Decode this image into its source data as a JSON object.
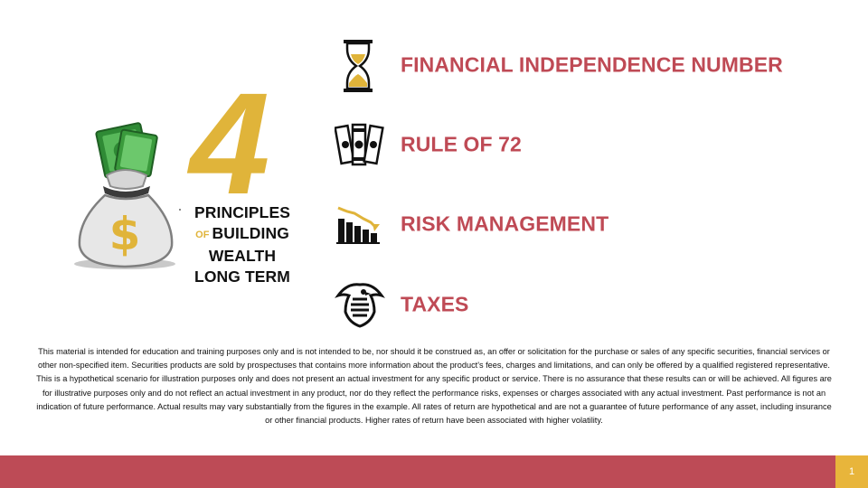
{
  "hero": {
    "number": "4",
    "line1": "PRINCIPLES",
    "of": "OF",
    "line2": "BUILDING",
    "line3": "WEALTH",
    "line4": "LONG TERM"
  },
  "items": [
    {
      "label": "FINANCIAL INDEPENDENCE NUMBER",
      "icon": "hourglass-icon"
    },
    {
      "label": "RULE OF 72",
      "icon": "money-bills-icon"
    },
    {
      "label": "RISK MANAGEMENT",
      "icon": "declining-bar-chart-icon"
    },
    {
      "label": "TAXES",
      "icon": "irs-eagle-icon"
    }
  ],
  "disclaimer": "This material is intended for education and training purposes only and is not intended to be, nor should it be construed as, an offer or solicitation for the purchase or sales of any specific securities, financial services or other non-specified item. Securities products are sold by prospectuses that contains more information about the product's fees, charges and limitations, and can only be offered by a qualified registered representative. This is a hypothetical scenario for illustration purposes only and does not present an actual investment for any specific product or service. There is no assurance that these results can or will be achieved. All figures are for illustrative purposes only and do not reflect an actual investment in any product, nor do they reflect the performance risks, expenses or charges associated with any actual investment. Past performance is not an indication of future performance. Actual results may vary substantially from the figures in the example. All rates of return are hypothetical and are not a guarantee of future performance of any asset, including insurance or other financial products. Higher rates of return have been associated with higher volatility.",
  "footer": {
    "page_number": "1"
  },
  "colors": {
    "accent_red": "#bd4b56",
    "accent_gold": "#e0b43a",
    "money_green": "#3a9a3c"
  },
  "moneybag_symbol": "$"
}
